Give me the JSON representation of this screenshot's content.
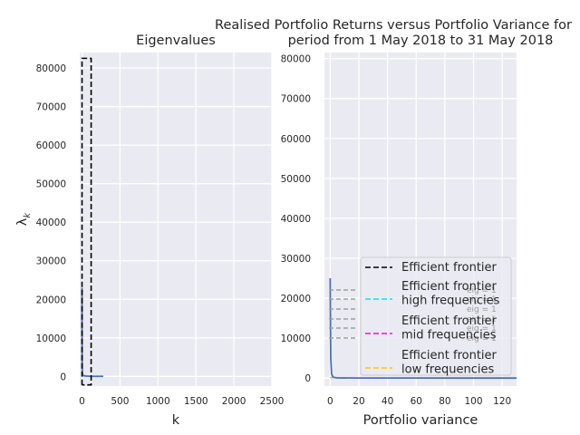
{
  "chart_data": [
    {
      "type": "line",
      "title": "Eigenvalues",
      "xlabel": "k",
      "ylabel": "λ_k",
      "xlim": [
        -30,
        2500
      ],
      "ylim": [
        -2500,
        84000
      ],
      "xticks": [
        "0",
        "500",
        "1000",
        "1500",
        "2000",
        "2500"
      ],
      "yticks": [
        "0",
        "10000",
        "20000",
        "30000",
        "40000",
        "50000",
        "60000",
        "70000",
        "80000"
      ],
      "grid": true,
      "series": [
        {
          "style": "solid",
          "color": "#4c72b0",
          "x": [
            0,
            1,
            2,
            3,
            5,
            10,
            20,
            50,
            100,
            200,
            280
          ],
          "y": [
            23000,
            9000,
            4000,
            2000,
            900,
            400,
            200,
            100,
            60,
            30,
            20
          ]
        },
        {
          "style": "dashed",
          "color": "#000000",
          "x": [
            0,
            0,
            120,
            120,
            0
          ],
          "y": [
            -2200,
            82500,
            82500,
            -2200,
            -2200
          ]
        }
      ]
    },
    {
      "type": "line",
      "title": "Realised Portfolio Returns versus Portfolio Variance for",
      "subtitle": "period from 1 May 2018 to 31 May 2018",
      "xlabel": "Portfolio variance",
      "ylabel": "",
      "xlim": [
        -4,
        130
      ],
      "ylim": [
        -2000,
        81500
      ],
      "xticks": [
        "0",
        "20",
        "40",
        "60",
        "80",
        "100",
        "120"
      ],
      "yticks": [
        "0",
        "10000",
        "20000",
        "30000",
        "40000",
        "50000",
        "60000",
        "70000",
        "80000"
      ],
      "grid": true,
      "series": [
        {
          "style": "solid",
          "color": "#4c72b0",
          "x": [
            0,
            0.4,
            1,
            2,
            5,
            20,
            60,
            130
          ],
          "y": [
            25000,
            5000,
            1000,
            200,
            50,
            10,
            5,
            2
          ]
        },
        {
          "style": "dashed",
          "color": "#e5c400",
          "x": [
            0,
            0.5,
            1.5
          ],
          "y": [
            200,
            100,
            50
          ]
        }
      ],
      "legend": {
        "placement": "lower right",
        "entries": [
          {
            "label": "Efficient frontier",
            "color": "#000000"
          },
          {
            "label": "Efficient frontier\nhigh frequencies",
            "color": "#00e5ee"
          },
          {
            "label": "Efficient frontier\nmid frequencies",
            "color": "#ff00ff"
          },
          {
            "label": "Efficient frontier\nlow frequencies",
            "color": "#ffc20e"
          }
        ],
        "faint_entries": [
          "eig = 1",
          "eig = 1",
          "eig = 1",
          "eig = 1",
          "eig = 1",
          "eig = 1"
        ]
      }
    }
  ]
}
